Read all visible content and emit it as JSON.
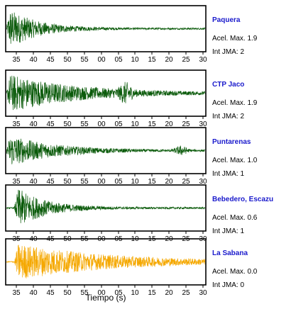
{
  "chart_data": {
    "type": "line",
    "xlabel": "Tiempo (s)",
    "x_ticks": [
      "35",
      "40",
      "45",
      "50",
      "55",
      "00",
      "05",
      "10",
      "15",
      "20",
      "25",
      "30"
    ],
    "panels": [
      {
        "station": "Paquera",
        "acel": "Acel. Max. 1.9",
        "int": "Int JMA: 2",
        "color": "#0a5a0a",
        "onset": 0.0,
        "decay": 0.14,
        "amp": 1.0,
        "late": []
      },
      {
        "station": "CTP Jaco",
        "acel": "Acel. Max. 1.9",
        "int": "Int JMA: 2",
        "color": "#0a5a0a",
        "onset": 0.0,
        "decay": 0.33,
        "amp": 0.9,
        "late": [
          [
            0.6,
            0.35
          ]
        ]
      },
      {
        "station": "Puntarenas",
        "acel": "Acel. Max. 1.0",
        "int": "Int JMA: 1",
        "color": "#0a5a0a",
        "onset": 0.0,
        "decay": 0.22,
        "amp": 0.75,
        "late": [
          [
            0.88,
            0.18
          ]
        ]
      },
      {
        "station": "Bebedero, Escazu",
        "acel": "Acel. Max. 0.6",
        "int": "Int JMA: 1",
        "color": "#0a5a0a",
        "onset": 0.04,
        "decay": 0.14,
        "amp": 1.0,
        "late": []
      },
      {
        "station": "La Sabana",
        "acel": "Acel. Max. 0.0",
        "int": "Int JMA: 0",
        "color": "#f5a800",
        "onset": 0.04,
        "decay": 0.45,
        "amp": 0.85,
        "late": []
      }
    ]
  }
}
